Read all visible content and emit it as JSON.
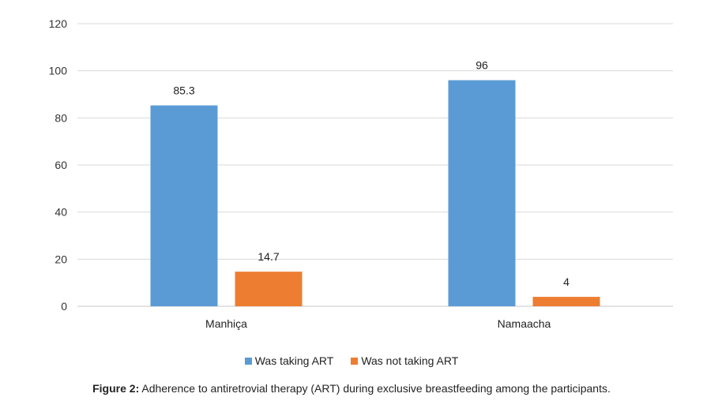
{
  "chart_data": {
    "type": "bar",
    "categories": [
      "Manhiça",
      "Namaacha"
    ],
    "series": [
      {
        "name": "Was taking ART",
        "values": [
          85.3,
          96
        ],
        "color": "#5B9BD5"
      },
      {
        "name": "Was not taking ART",
        "values": [
          14.7,
          4
        ],
        "color": "#ED7D31"
      }
    ],
    "data_labels": [
      [
        "85.3",
        "96"
      ],
      [
        "14.7",
        "4"
      ]
    ],
    "ylim": [
      0,
      120
    ],
    "yticks": [
      0,
      20,
      40,
      60,
      80,
      100,
      120
    ],
    "grid": true,
    "legend_position": "bottom",
    "title": "",
    "xlabel": "",
    "ylabel": ""
  },
  "caption": {
    "prefix": "Figure 2:",
    "text": "Adherence to antiretrovial therapy (ART) during exclusive breastfeeding among the participants."
  }
}
